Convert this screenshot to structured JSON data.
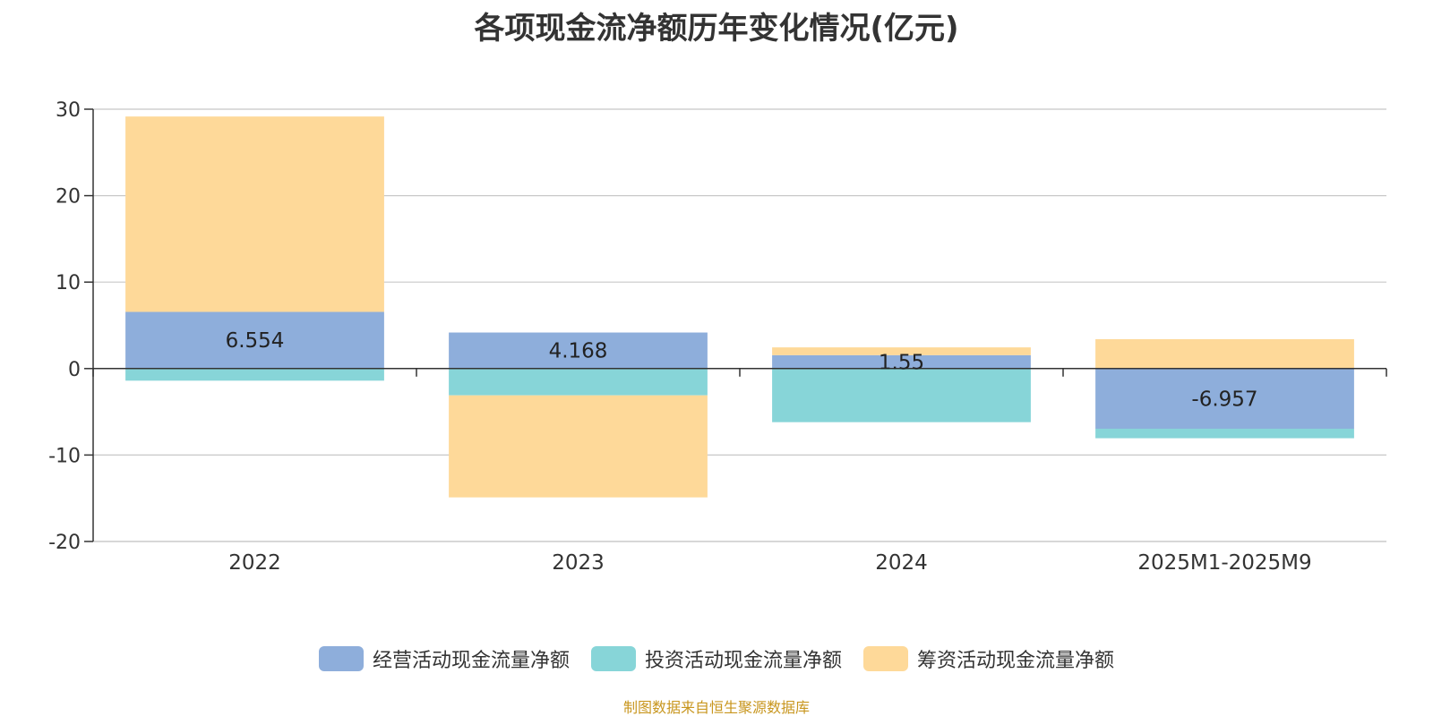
{
  "chart_data": {
    "type": "bar",
    "stacked": true,
    "title": "各项现金流净额历年变化情况(亿元)",
    "categories": [
      "2022",
      "2023",
      "2024",
      "2025M1-2025M9"
    ],
    "ylim": [
      -20,
      30
    ],
    "yticks": [
      30,
      20,
      10,
      0,
      -10,
      -20
    ],
    "grid": true,
    "legend_position": "bottom",
    "series": [
      {
        "name": "经营活动现金流量净额",
        "color": "#8eaedb",
        "values": [
          6.554,
          4.168,
          1.55,
          -6.957
        ],
        "labels": [
          "6.554",
          "4.168",
          "1.55",
          "-6.957"
        ]
      },
      {
        "name": "投资活动现金流量净额",
        "color": "#87d5d8",
        "values": [
          -1.4,
          -3.1,
          -6.2,
          -1.1
        ]
      },
      {
        "name": "筹资活动现金流量净额",
        "color": "#fed999",
        "values": [
          22.6,
          -11.8,
          0.9,
          3.4
        ]
      }
    ]
  },
  "source": "制图数据来自恒生聚源数据库"
}
